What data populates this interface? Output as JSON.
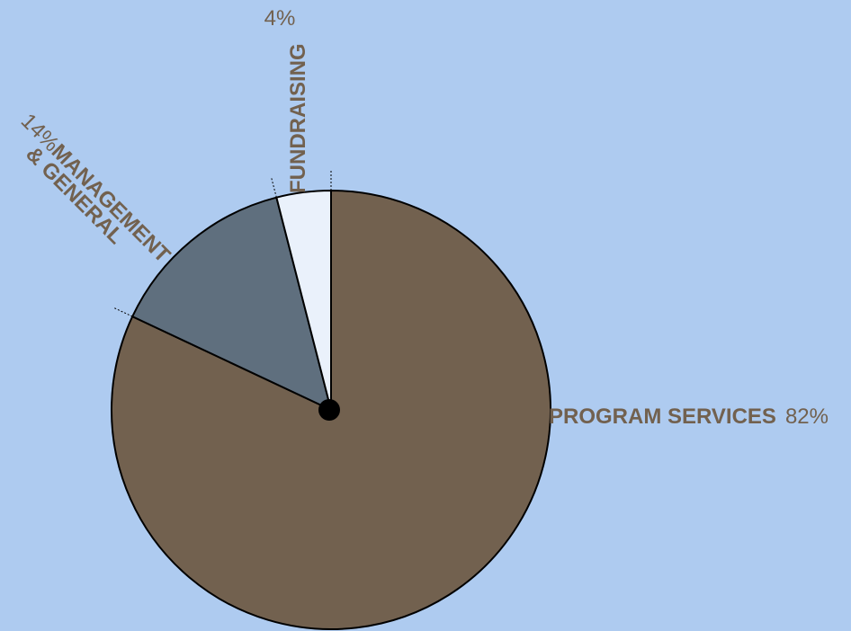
{
  "chart_data": {
    "type": "pie",
    "slices": [
      {
        "name": "PROGRAM SERVICES",
        "pct_label": "82%",
        "value": 82,
        "color": "#72614f"
      },
      {
        "name_lines": [
          "MANAGEMENT",
          "& GENERAL"
        ],
        "pct_label": "14%",
        "value": 14,
        "color": "#5f6f7e"
      },
      {
        "name": "FUNDRAISING",
        "pct_label": "4%",
        "value": 4,
        "color": "#eaf1fb"
      }
    ],
    "start": "12 o'clock",
    "direction": "clockwise",
    "label_color": "#72614f",
    "background": "#aecbf0"
  }
}
